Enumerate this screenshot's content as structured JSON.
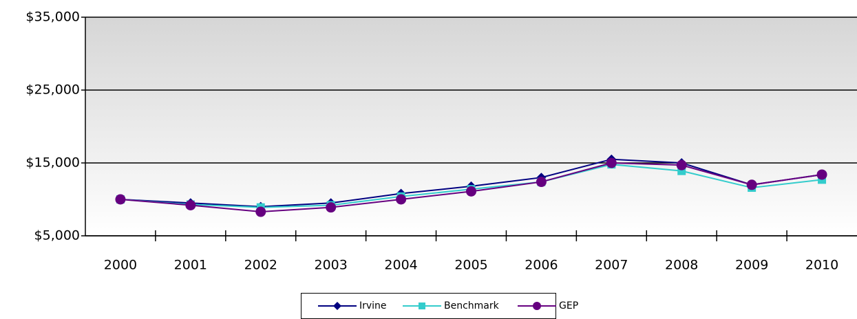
{
  "chart_data": {
    "type": "line",
    "categories": [
      "2000",
      "2001",
      "2002",
      "2003",
      "2004",
      "2005",
      "2006",
      "2007",
      "2008",
      "2009",
      "2010"
    ],
    "series": [
      {
        "name": "Irvine",
        "color": "#000080",
        "marker": "diamond",
        "values": [
          10000,
          9500,
          9000,
          9500,
          10800,
          11800,
          13000,
          15500,
          15000,
          12000,
          13400
        ]
      },
      {
        "name": "Benchmark",
        "color": "#33cccc",
        "marker": "square",
        "values": [
          10000,
          9300,
          8900,
          9200,
          10400,
          11400,
          12400,
          14800,
          13900,
          11600,
          12700
        ]
      },
      {
        "name": "GEP",
        "color": "#660080",
        "marker": "circle",
        "values": [
          10000,
          9200,
          8300,
          8900,
          10000,
          11100,
          12400,
          15000,
          14700,
          12000,
          13400
        ]
      }
    ],
    "ylim": [
      5000,
      35000
    ],
    "yticks": [
      {
        "value": 5000,
        "label": "$5,000"
      },
      {
        "value": 15000,
        "label": "$15,000"
      },
      {
        "value": 25000,
        "label": "$25,000"
      },
      {
        "value": 35000,
        "label": "$35,000"
      }
    ],
    "grid": true,
    "legend": "bottom"
  }
}
